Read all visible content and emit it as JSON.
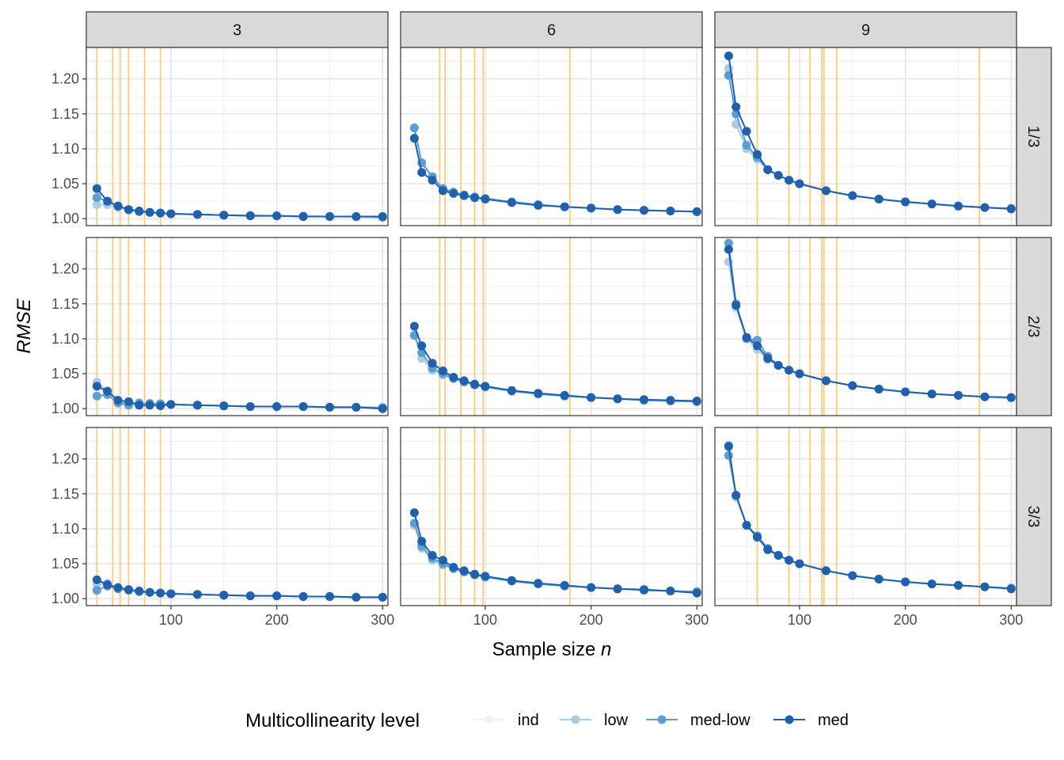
{
  "chart_data": {
    "type": "line",
    "facet_rows_var": "",
    "facet_cols_var": "",
    "col_facets": [
      "3",
      "6",
      "9"
    ],
    "row_facets": [
      "1/3",
      "2/3",
      "3/3"
    ],
    "xlabel": "Sample size n",
    "xlabel_main": "Sample size ",
    "xlabel_italic": "n",
    "ylabel": "RMSE",
    "xlim": [
      20,
      305
    ],
    "ylim": [
      0.99,
      1.245
    ],
    "x_ticks": [
      100,
      200,
      300
    ],
    "x_tick_labels": [
      "100",
      "200",
      "300"
    ],
    "y_ticks": [
      1.0,
      1.05,
      1.1,
      1.15,
      1.2
    ],
    "y_tick_labels": [
      "1.00",
      "1.05",
      "1.10",
      "1.15",
      "1.20"
    ],
    "grid": true,
    "legend_position": "bottom",
    "legend_title": "Multicollinearity level",
    "series": [
      {
        "name": "ind",
        "color": "#eef3fb"
      },
      {
        "name": "low",
        "color": "#aacce5"
      },
      {
        "name": "med-low",
        "color": "#5b9fcf"
      },
      {
        "name": "med",
        "color": "#2060ad"
      }
    ],
    "reference_line_color": "#ffc66e",
    "reference_lines_by_col": [
      [
        30,
        45,
        52,
        60,
        75,
        90
      ],
      [
        57,
        62,
        77,
        90,
        98,
        180
      ],
      [
        60,
        90,
        110,
        121,
        123,
        135,
        270
      ]
    ],
    "panels": [
      {
        "row": 0,
        "col": 0,
        "x": [
          30,
          40,
          50,
          60,
          70,
          80,
          90,
          100,
          125,
          150,
          175,
          200,
          225,
          250,
          275,
          300
        ],
        "series": [
          {
            "name": "ind",
            "y": [
              1.035,
              1.024,
              1.017,
              1.013,
              1.01,
              1.009,
              1.008,
              1.007,
              1.006,
              1.005,
              1.004,
              1.004,
              1.003,
              1.003,
              1.003,
              1.002
            ]
          },
          {
            "name": "low",
            "y": [
              1.02,
              1.02,
              1.016,
              1.012,
              1.01,
              1.009,
              1.008,
              1.007,
              1.006,
              1.005,
              1.005,
              1.004,
              1.004,
              1.003,
              1.003,
              1.002
            ]
          },
          {
            "name": "med-low",
            "y": [
              1.03,
              1.025,
              1.018,
              1.013,
              1.01,
              1.009,
              1.008,
              1.007,
              1.006,
              1.005,
              1.004,
              1.004,
              1.003,
              1.003,
              1.003,
              1.002
            ]
          },
          {
            "name": "med",
            "y": [
              1.043,
              1.025,
              1.018,
              1.013,
              1.011,
              1.009,
              1.008,
              1.007,
              1.006,
              1.005,
              1.004,
              1.004,
              1.003,
              1.003,
              1.003,
              1.003
            ]
          }
        ]
      },
      {
        "row": 0,
        "col": 1,
        "x": [
          33,
          40,
          50,
          60,
          70,
          80,
          90,
          100,
          125,
          150,
          175,
          200,
          225,
          250,
          275,
          300
        ],
        "series": [
          {
            "name": "ind",
            "y": [
              1.125,
              1.075,
              1.06,
              1.043,
              1.037,
              1.034,
              1.031,
              1.029,
              1.024,
              1.02,
              1.017,
              1.015,
              1.013,
              1.012,
              1.011,
              1.01
            ]
          },
          {
            "name": "low",
            "y": [
              1.13,
              1.08,
              1.06,
              1.042,
              1.038,
              1.034,
              1.031,
              1.028,
              1.024,
              1.02,
              1.017,
              1.015,
              1.013,
              1.012,
              1.011,
              1.01
            ]
          },
          {
            "name": "med-low",
            "y": [
              1.13,
              1.08,
              1.06,
              1.043,
              1.038,
              1.034,
              1.031,
              1.029,
              1.024,
              1.02,
              1.017,
              1.015,
              1.013,
              1.012,
              1.011,
              1.01
            ]
          },
          {
            "name": "med",
            "y": [
              1.115,
              1.066,
              1.055,
              1.04,
              1.036,
              1.033,
              1.03,
              1.028,
              1.023,
              1.019,
              1.017,
              1.015,
              1.013,
              1.012,
              1.011,
              1.01
            ]
          }
        ]
      },
      {
        "row": 0,
        "col": 2,
        "x": [
          33,
          40,
          50,
          60,
          70,
          80,
          90,
          100,
          125,
          150,
          175,
          200,
          225,
          250,
          275,
          300
        ],
        "series": [
          {
            "name": "ind",
            "y": [
              1.21,
              1.14,
              1.105,
              1.085,
              1.07,
              1.062,
              1.055,
              1.05,
              1.04,
              1.033,
              1.028,
              1.024,
              1.021,
              1.018,
              1.016,
              1.014
            ]
          },
          {
            "name": "low",
            "y": [
              1.215,
              1.135,
              1.1,
              1.085,
              1.07,
              1.062,
              1.055,
              1.05,
              1.04,
              1.033,
              1.028,
              1.024,
              1.021,
              1.018,
              1.016,
              1.015
            ]
          },
          {
            "name": "med-low",
            "y": [
              1.205,
              1.15,
              1.105,
              1.088,
              1.07,
              1.062,
              1.055,
              1.05,
              1.04,
              1.033,
              1.028,
              1.024,
              1.021,
              1.018,
              1.016,
              1.014
            ]
          },
          {
            "name": "med",
            "y": [
              1.233,
              1.16,
              1.125,
              1.092,
              1.07,
              1.062,
              1.055,
              1.05,
              1.04,
              1.033,
              1.028,
              1.024,
              1.021,
              1.018,
              1.016,
              1.014
            ]
          }
        ]
      },
      {
        "row": 1,
        "col": 0,
        "x": [
          30,
          40,
          50,
          60,
          70,
          80,
          90,
          100,
          125,
          150,
          175,
          200,
          225,
          250,
          275,
          300
        ],
        "series": [
          {
            "name": "ind",
            "y": [
              1.03,
              1.022,
              1.015,
              1.012,
              1.01,
              1.008,
              1.007,
              1.006,
              1.005,
              1.004,
              1.003,
              1.003,
              1.003,
              1.002,
              1.002,
              1.002
            ]
          },
          {
            "name": "low",
            "y": [
              1.038,
              1.025,
              1.01,
              1.008,
              1.008,
              1.008,
              1.007,
              1.006,
              1.005,
              1.004,
              1.003,
              1.003,
              1.003,
              1.002,
              1.002,
              1.002
            ]
          },
          {
            "name": "med-low",
            "y": [
              1.018,
              1.02,
              1.008,
              1.005,
              1.008,
              1.007,
              1.007,
              1.006,
              1.005,
              1.004,
              1.003,
              1.003,
              1.003,
              1.002,
              1.002,
              1.001
            ]
          },
          {
            "name": "med",
            "y": [
              1.032,
              1.025,
              1.012,
              1.01,
              1.005,
              1.005,
              1.004,
              1.006,
              1.005,
              1.004,
              1.003,
              1.003,
              1.003,
              1.002,
              1.002,
              1.0
            ]
          }
        ]
      },
      {
        "row": 1,
        "col": 1,
        "x": [
          33,
          40,
          50,
          60,
          70,
          80,
          90,
          100,
          125,
          150,
          175,
          200,
          225,
          250,
          275,
          300
        ],
        "series": [
          {
            "name": "ind",
            "y": [
              1.105,
              1.075,
              1.058,
              1.05,
              1.043,
              1.038,
              1.034,
              1.031,
              1.025,
              1.021,
              1.018,
              1.016,
              1.014,
              1.012,
              1.011,
              1.01
            ]
          },
          {
            "name": "low",
            "y": [
              1.105,
              1.072,
              1.055,
              1.048,
              1.043,
              1.038,
              1.034,
              1.031,
              1.025,
              1.021,
              1.018,
              1.016,
              1.014,
              1.012,
              1.011,
              1.01
            ]
          },
          {
            "name": "med-low",
            "y": [
              1.105,
              1.08,
              1.058,
              1.05,
              1.043,
              1.038,
              1.034,
              1.031,
              1.025,
              1.021,
              1.018,
              1.016,
              1.014,
              1.012,
              1.011,
              1.01
            ]
          },
          {
            "name": "med",
            "y": [
              1.118,
              1.09,
              1.065,
              1.054,
              1.045,
              1.04,
              1.035,
              1.032,
              1.026,
              1.022,
              1.019,
              1.016,
              1.014,
              1.013,
              1.012,
              1.011
            ]
          }
        ]
      },
      {
        "row": 1,
        "col": 2,
        "x": [
          33,
          40,
          50,
          60,
          70,
          80,
          90,
          100,
          125,
          150,
          175,
          200,
          225,
          250,
          275,
          300
        ],
        "series": [
          {
            "name": "ind",
            "y": [
              1.21,
              1.14,
              1.1,
              1.085,
              1.07,
              1.062,
              1.055,
              1.05,
              1.04,
              1.033,
              1.028,
              1.024,
              1.021,
              1.019,
              1.017,
              1.015
            ]
          },
          {
            "name": "low",
            "y": [
              1.21,
              1.145,
              1.1,
              1.085,
              1.07,
              1.062,
              1.055,
              1.05,
              1.04,
              1.033,
              1.028,
              1.024,
              1.021,
              1.019,
              1.017,
              1.015
            ]
          },
          {
            "name": "med-low",
            "y": [
              1.237,
              1.15,
              1.1,
              1.098,
              1.075,
              1.062,
              1.055,
              1.05,
              1.04,
              1.033,
              1.028,
              1.024,
              1.021,
              1.019,
              1.017,
              1.016
            ]
          },
          {
            "name": "med",
            "y": [
              1.228,
              1.148,
              1.102,
              1.09,
              1.072,
              1.062,
              1.055,
              1.05,
              1.04,
              1.033,
              1.028,
              1.024,
              1.021,
              1.019,
              1.017,
              1.016
            ]
          }
        ]
      },
      {
        "row": 2,
        "col": 0,
        "x": [
          30,
          40,
          50,
          60,
          70,
          80,
          90,
          100,
          125,
          150,
          175,
          200,
          225,
          250,
          275,
          300
        ],
        "series": [
          {
            "name": "ind",
            "y": [
              1.022,
              1.018,
              1.015,
              1.012,
              1.01,
              1.009,
              1.008,
              1.007,
              1.006,
              1.005,
              1.004,
              1.004,
              1.003,
              1.003,
              1.002,
              1.002
            ]
          },
          {
            "name": "low",
            "y": [
              1.02,
              1.022,
              1.015,
              1.012,
              1.01,
              1.009,
              1.008,
              1.007,
              1.006,
              1.005,
              1.004,
              1.004,
              1.003,
              1.003,
              1.002,
              1.002
            ]
          },
          {
            "name": "med-low",
            "y": [
              1.012,
              1.018,
              1.014,
              1.012,
              1.01,
              1.009,
              1.008,
              1.007,
              1.006,
              1.005,
              1.004,
              1.004,
              1.003,
              1.003,
              1.002,
              1.002
            ]
          },
          {
            "name": "med",
            "y": [
              1.027,
              1.02,
              1.016,
              1.013,
              1.011,
              1.009,
              1.008,
              1.007,
              1.006,
              1.005,
              1.004,
              1.004,
              1.003,
              1.003,
              1.002,
              1.002
            ]
          }
        ]
      },
      {
        "row": 2,
        "col": 1,
        "x": [
          33,
          40,
          50,
          60,
          70,
          80,
          90,
          100,
          125,
          150,
          175,
          200,
          225,
          250,
          275,
          300
        ],
        "series": [
          {
            "name": "ind",
            "y": [
              1.105,
              1.075,
              1.058,
              1.05,
              1.043,
              1.038,
              1.034,
              1.031,
              1.025,
              1.021,
              1.018,
              1.016,
              1.014,
              1.012,
              1.011,
              1.01
            ]
          },
          {
            "name": "low",
            "y": [
              1.105,
              1.072,
              1.055,
              1.048,
              1.043,
              1.038,
              1.034,
              1.031,
              1.025,
              1.021,
              1.018,
              1.016,
              1.014,
              1.012,
              1.011,
              1.01
            ]
          },
          {
            "name": "med-low",
            "y": [
              1.108,
              1.075,
              1.058,
              1.05,
              1.043,
              1.038,
              1.034,
              1.031,
              1.025,
              1.021,
              1.018,
              1.016,
              1.014,
              1.012,
              1.011,
              1.01
            ]
          },
          {
            "name": "med",
            "y": [
              1.123,
              1.082,
              1.062,
              1.055,
              1.045,
              1.04,
              1.035,
              1.032,
              1.026,
              1.022,
              1.019,
              1.016,
              1.014,
              1.013,
              1.011,
              1.008
            ]
          }
        ]
      },
      {
        "row": 2,
        "col": 2,
        "x": [
          33,
          40,
          50,
          60,
          70,
          80,
          90,
          100,
          125,
          150,
          175,
          200,
          225,
          250,
          275,
          300
        ],
        "series": [
          {
            "name": "ind",
            "y": [
              1.215,
              1.148,
              1.105,
              1.088,
              1.07,
              1.062,
              1.055,
              1.05,
              1.04,
              1.033,
              1.028,
              1.024,
              1.021,
              1.019,
              1.017,
              1.015
            ]
          },
          {
            "name": "low",
            "y": [
              1.22,
              1.145,
              1.105,
              1.088,
              1.07,
              1.062,
              1.055,
              1.05,
              1.04,
              1.033,
              1.028,
              1.024,
              1.021,
              1.019,
              1.017,
              1.015
            ]
          },
          {
            "name": "med-low",
            "y": [
              1.205,
              1.148,
              1.105,
              1.09,
              1.072,
              1.062,
              1.055,
              1.05,
              1.04,
              1.033,
              1.028,
              1.024,
              1.021,
              1.019,
              1.017,
              1.015
            ]
          },
          {
            "name": "med",
            "y": [
              1.218,
              1.148,
              1.105,
              1.088,
              1.07,
              1.062,
              1.055,
              1.05,
              1.04,
              1.033,
              1.028,
              1.024,
              1.021,
              1.019,
              1.017,
              1.014
            ]
          }
        ]
      }
    ]
  }
}
